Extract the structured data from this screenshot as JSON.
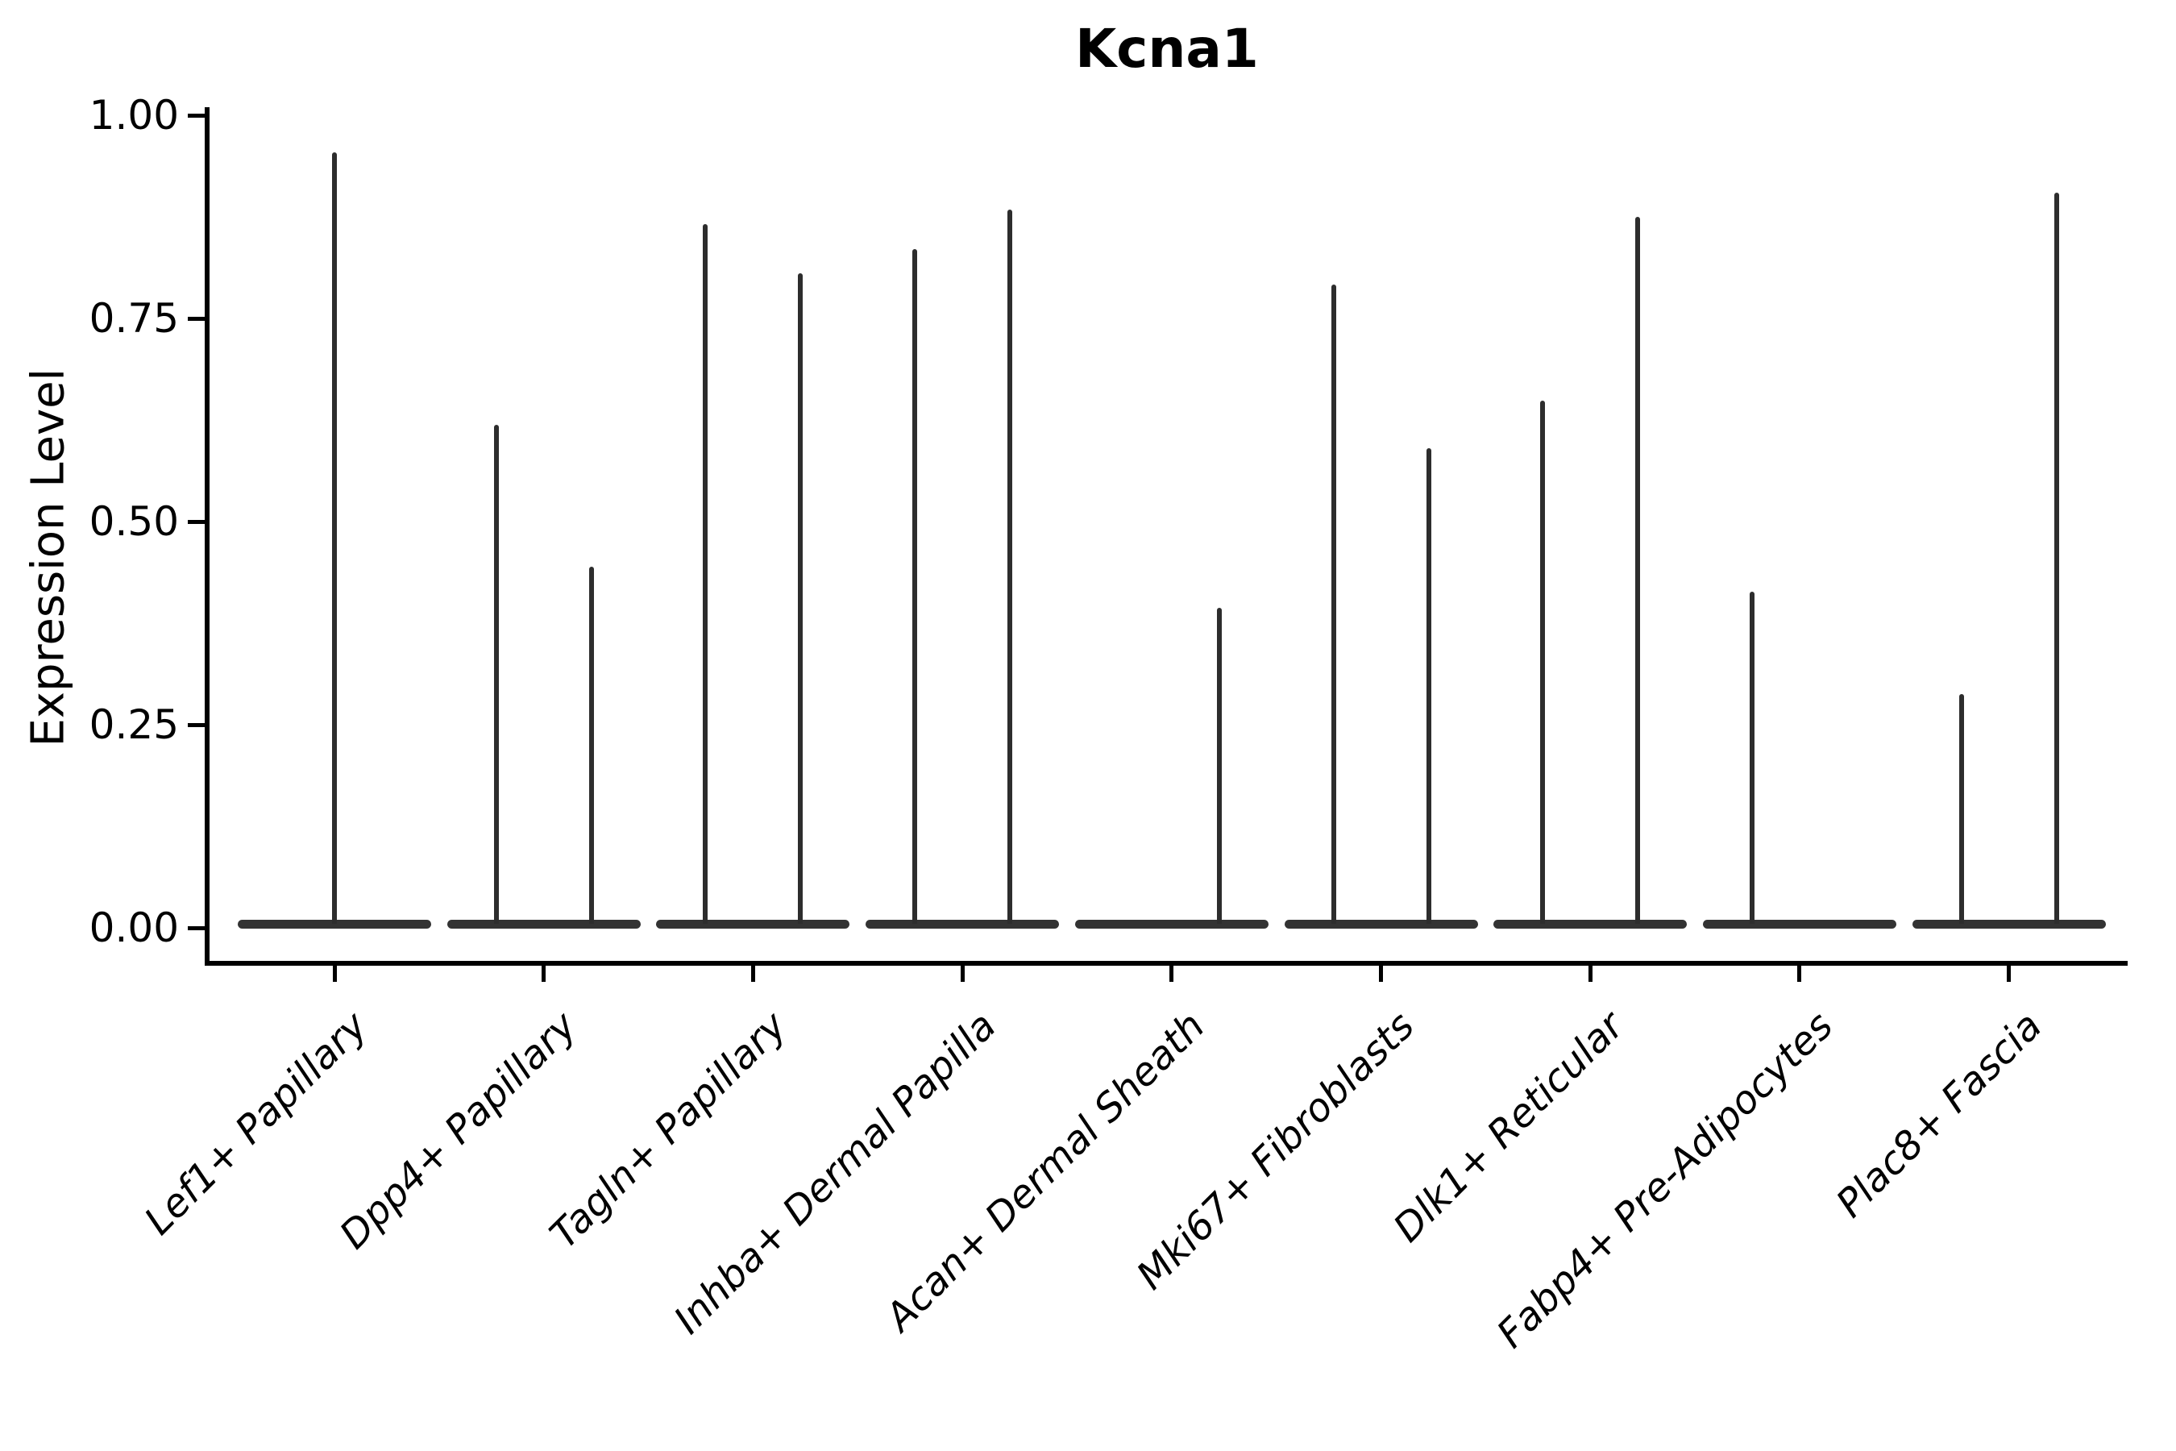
{
  "title": "Kcna1",
  "y_axis": {
    "label": "Expression Level",
    "tick_labels": [
      "1.00",
      "0.75",
      "0.50",
      "0.25",
      "0.00"
    ],
    "tick_values": [
      1.0,
      0.75,
      0.5,
      0.25,
      0.0
    ]
  },
  "x_axis": {
    "categories": [
      "Lef1+ Papillary",
      "Dpp4+ Papillary",
      "Tagln+ Papillary",
      "Inhba+ Dermal Papilla",
      "Acan+ Dermal Sheath",
      "Mki67+ Fibroblasts",
      "Dlk1+ Reticular",
      "Fabp4+ Pre-Adipocytes",
      "Plac8+ Fascia"
    ]
  },
  "chart_data": {
    "type": "violin",
    "title": "Kcna1",
    "xlabel": "",
    "ylabel": "Expression Level",
    "ylim": [
      0,
      1.0
    ],
    "yticks": [
      0.0,
      0.25,
      0.5,
      0.75,
      1.0
    ],
    "grid": false,
    "legend": "none",
    "violin_shape_note": "Each violin collapses to a wide flat bar at expression 0 (most cells zero) with a thin vertical spike rising to the maximum expression value",
    "categories": [
      "Lef1+ Papillary",
      "Dpp4+ Papillary",
      "Tagln+ Papillary",
      "Inhba+ Dermal Papilla",
      "Acan+ Dermal Sheath",
      "Mki67+ Fibroblasts",
      "Dlk1+ Reticular",
      "Fabp4+ Pre-Adipocytes",
      "Plac8+ Fascia"
    ],
    "series": [
      {
        "category": "Lef1+ Papillary",
        "violins": [
          {
            "position": "center",
            "max": 0.954
          }
        ]
      },
      {
        "category": "Dpp4+ Papillary",
        "violins": [
          {
            "position": "left",
            "max": 0.619
          },
          {
            "position": "right",
            "max": 0.444
          }
        ]
      },
      {
        "category": "Tagln+ Papillary",
        "violins": [
          {
            "position": "left",
            "max": 0.866
          },
          {
            "position": "right",
            "max": 0.806
          }
        ]
      },
      {
        "category": "Inhba+ Dermal Papilla",
        "violins": [
          {
            "position": "left",
            "max": 0.835
          },
          {
            "position": "right",
            "max": 0.884
          }
        ]
      },
      {
        "category": "Acan+ Dermal Sheath",
        "violins": [
          {
            "position": "right",
            "max": 0.394
          }
        ]
      },
      {
        "category": "Mki67+ Fibroblasts",
        "violins": [
          {
            "position": "left",
            "max": 0.792
          },
          {
            "position": "right",
            "max": 0.59
          }
        ]
      },
      {
        "category": "Dlk1+ Reticular",
        "violins": [
          {
            "position": "left",
            "max": 0.649
          },
          {
            "position": "right",
            "max": 0.875
          }
        ]
      },
      {
        "category": "Fabp4+ Pre-Adipocytes",
        "violins": [
          {
            "position": "left",
            "max": 0.414
          }
        ]
      },
      {
        "category": "Plac8+ Fascia",
        "violins": [
          {
            "position": "left",
            "max": 0.288
          },
          {
            "position": "right",
            "max": 0.905
          }
        ]
      }
    ]
  },
  "style": {
    "background": "#ffffff",
    "axis_color": "#000000",
    "text_color": "#000000",
    "violin_color": "#2d2d2d"
  }
}
